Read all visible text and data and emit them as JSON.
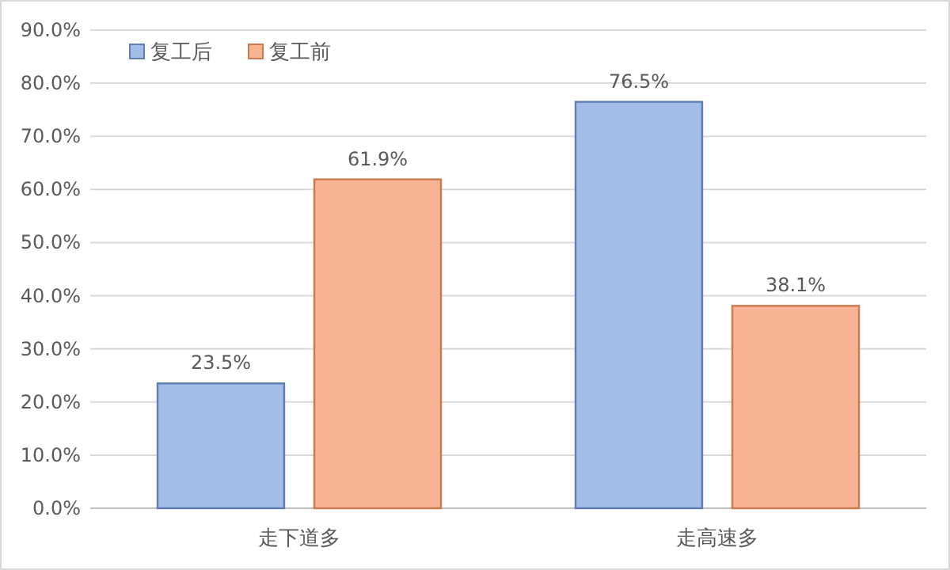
{
  "chart_data": {
    "type": "bar",
    "categories": [
      "走下道多",
      "走高速多"
    ],
    "series": [
      {
        "name": "复工后",
        "color": "#a3bde6",
        "values": [
          23.5,
          76.5
        ],
        "value_labels": [
          "23.5%",
          "76.5%"
        ]
      },
      {
        "name": "复工前",
        "color": "#f6b493",
        "values": [
          61.9,
          38.1
        ],
        "value_labels": [
          "61.9%",
          "38.1%"
        ]
      }
    ],
    "ylim": [
      0,
      90
    ],
    "yticks": [
      {
        "value": 0,
        "label": "0.0%"
      },
      {
        "value": 10,
        "label": "10.0%"
      },
      {
        "value": 20,
        "label": "20.0%"
      },
      {
        "value": 30,
        "label": "30.0%"
      },
      {
        "value": 40,
        "label": "40.0%"
      },
      {
        "value": 50,
        "label": "50.0%"
      },
      {
        "value": 60,
        "label": "60.0%"
      },
      {
        "value": 70,
        "label": "70.0%"
      },
      {
        "value": 80,
        "label": "80.0%"
      },
      {
        "value": 90,
        "label": "90.0%"
      }
    ],
    "grid": "y",
    "legend": "top left"
  }
}
